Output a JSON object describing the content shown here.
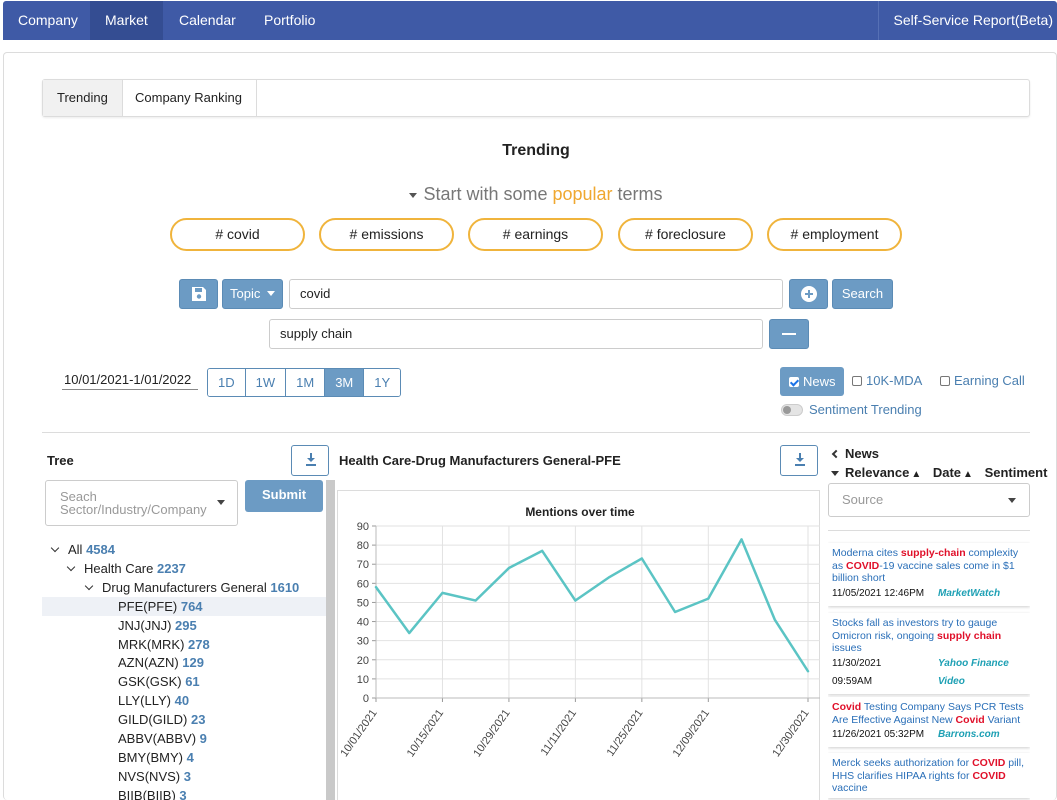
{
  "nav": {
    "items": [
      "Company",
      "Market",
      "Calendar",
      "Portfolio"
    ],
    "right": "Self-Service Report(Beta)"
  },
  "tabs": [
    "Trending",
    "Company Ranking"
  ],
  "trending": {
    "title": "Trending",
    "popular_prefix": "Start with some ",
    "popular_highlight": "popular",
    "popular_suffix": " terms",
    "pills": [
      "# covid",
      "# emissions",
      "# earnings",
      "# foreclosure",
      "# employment"
    ]
  },
  "search": {
    "topic_label": "Topic",
    "term1": "covid",
    "term2": "supply chain",
    "search_label": "Search"
  },
  "date": {
    "range": "10/01/2021-1/01/2022",
    "buttons": [
      "1D",
      "1W",
      "1M",
      "3M",
      "1Y"
    ],
    "active": "3M"
  },
  "sources": {
    "news": "News",
    "mda": "10K-MDA",
    "call": "Earning Call",
    "sentiment": "Sentiment Trending"
  },
  "tree": {
    "title": "Tree",
    "placeholder_line1": "Seach",
    "placeholder_line2": "Sector/Industry/Company",
    "submit": "Submit",
    "rows": [
      {
        "label": "All",
        "count": "4584",
        "level": 0
      },
      {
        "label": "Health Care",
        "count": "2237",
        "level": 1
      },
      {
        "label": "Drug Manufacturers General",
        "count": "1610",
        "level": 2
      },
      {
        "label": "PFE(PFE)",
        "count": "764",
        "level": 3
      },
      {
        "label": "JNJ(JNJ)",
        "count": "295",
        "level": 3
      },
      {
        "label": "MRK(MRK)",
        "count": "278",
        "level": 3
      },
      {
        "label": "AZN(AZN)",
        "count": "129",
        "level": 3
      },
      {
        "label": "GSK(GSK)",
        "count": "61",
        "level": 3
      },
      {
        "label": "LLY(LLY)",
        "count": "40",
        "level": 3
      },
      {
        "label": "GILD(GILD)",
        "count": "23",
        "level": 3
      },
      {
        "label": "ABBV(ABBV)",
        "count": "9",
        "level": 3
      },
      {
        "label": "BMY(BMY)",
        "count": "4",
        "level": 3
      },
      {
        "label": "NVS(NVS)",
        "count": "3",
        "level": 3
      },
      {
        "label": "BIIB(BIIB)",
        "count": "3",
        "level": 3
      }
    ]
  },
  "chart_header": "Health Care-Drug Manufacturers General-PFE",
  "chart_data": {
    "type": "line",
    "title": "Mentions over time",
    "x": [
      "10/01/2021",
      "10/08/2021",
      "10/15/2021",
      "10/22/2021",
      "10/29/2021",
      "11/04/2021",
      "11/11/2021",
      "11/18/2021",
      "11/25/2021",
      "12/02/2021",
      "12/09/2021",
      "12/16/2021",
      "12/23/2021",
      "12/30/2021"
    ],
    "xticks": [
      "10/01/2021",
      "10/15/2021",
      "10/29/2021",
      "11/11/2021",
      "11/25/2021",
      "12/09/2021",
      "12/30/2021"
    ],
    "yticks": [
      "0",
      "10",
      "20",
      "30",
      "40",
      "50",
      "60",
      "70",
      "80",
      "90"
    ],
    "series": [
      {
        "values": [
          58,
          34,
          55,
          51,
          68,
          77,
          51,
          63,
          73,
          45,
          52,
          83,
          41,
          14
        ]
      }
    ],
    "ylim": [
      0,
      90
    ],
    "color": "#5bc4c4"
  },
  "news": {
    "title": "News",
    "sort": [
      "Relevance",
      "Date",
      "Sentiment"
    ],
    "source_placeholder": "Source",
    "cards": [
      {
        "parts": [
          [
            "Moderna cites ",
            0
          ],
          [
            "supply-chain",
            1
          ],
          [
            " complexity as ",
            0
          ],
          [
            "COVID",
            1
          ],
          [
            "-19 vaccine sales come in $1 billion short",
            0
          ]
        ],
        "date": "11/05/2021 12:46PM",
        "source": "MarketWatch"
      },
      {
        "parts": [
          [
            "Stocks fall as investors try to gauge Omicron risk, ongoing ",
            0
          ],
          [
            "supply chain",
            1
          ],
          [
            " issues",
            0
          ]
        ],
        "date": "11/30/2021",
        "source": "Yahoo Finance",
        "date2": "09:59AM",
        "source2": "Video"
      },
      {
        "parts": [
          [
            "Covid",
            1
          ],
          [
            " Testing Company Says PCR Tests Are Effective Against New ",
            0
          ],
          [
            "Covid",
            1
          ],
          [
            " Variant",
            0
          ]
        ],
        "date": "11/26/2021 05:32PM",
        "source": "Barrons.com"
      },
      {
        "parts": [
          [
            "Merck seeks authorization for ",
            0
          ],
          [
            "COVID",
            1
          ],
          [
            " pill, HHS clarifies HIPAA rights for ",
            0
          ],
          [
            "COVID",
            1
          ],
          [
            " vaccine",
            0
          ]
        ],
        "date": "",
        "source": ""
      }
    ]
  }
}
